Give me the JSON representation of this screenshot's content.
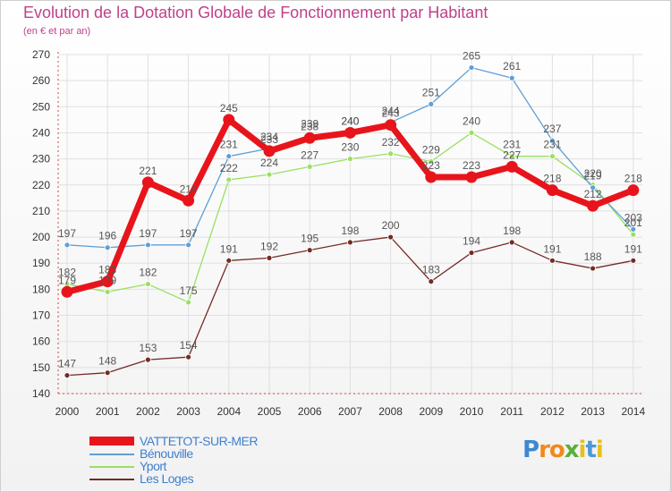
{
  "title": "Evolution de la Dotation Globale de Fonctionnement par Habitant",
  "subtitle": "(en € et par an)",
  "logo_text": "Proxiti",
  "colors": {
    "title": "#c0408a",
    "grid": "#e0e0e0",
    "axis": "#d0473a",
    "tick_text": "#333333",
    "label_text": "#555555"
  },
  "chart_data": {
    "type": "line",
    "x": [
      "2000",
      "2001",
      "2002",
      "2003",
      "2004",
      "2005",
      "2006",
      "2007",
      "2008",
      "2009",
      "2010",
      "2011",
      "2012",
      "2013",
      "2014"
    ],
    "ylim": [
      140,
      270
    ],
    "yticks": [
      140,
      150,
      160,
      170,
      180,
      190,
      200,
      210,
      220,
      230,
      240,
      250,
      260,
      270
    ],
    "grid": true,
    "legend_position": "bottom-left",
    "series": [
      {
        "name": "VATTETOT-SUR-MER",
        "color": "#e8141c",
        "values": [
          179,
          183,
          221,
          214,
          245,
          233,
          238,
          240,
          243,
          223,
          223,
          227,
          218,
          212,
          218
        ]
      },
      {
        "name": "Bénouville",
        "color": "#5f9fd6",
        "values": [
          197,
          196,
          197,
          197,
          231,
          234,
          239,
          240,
          244,
          251,
          265,
          261,
          237,
          219,
          203
        ]
      },
      {
        "name": "Yport",
        "color": "#99e063",
        "values": [
          182,
          179,
          182,
          175,
          222,
          224,
          227,
          230,
          232,
          229,
          240,
          231,
          231,
          220,
          201
        ]
      },
      {
        "name": "Les Loges",
        "color": "#742b26",
        "values": [
          147,
          148,
          153,
          154,
          191,
          192,
          195,
          198,
          200,
          183,
          194,
          198,
          191,
          188,
          191
        ]
      }
    ]
  }
}
